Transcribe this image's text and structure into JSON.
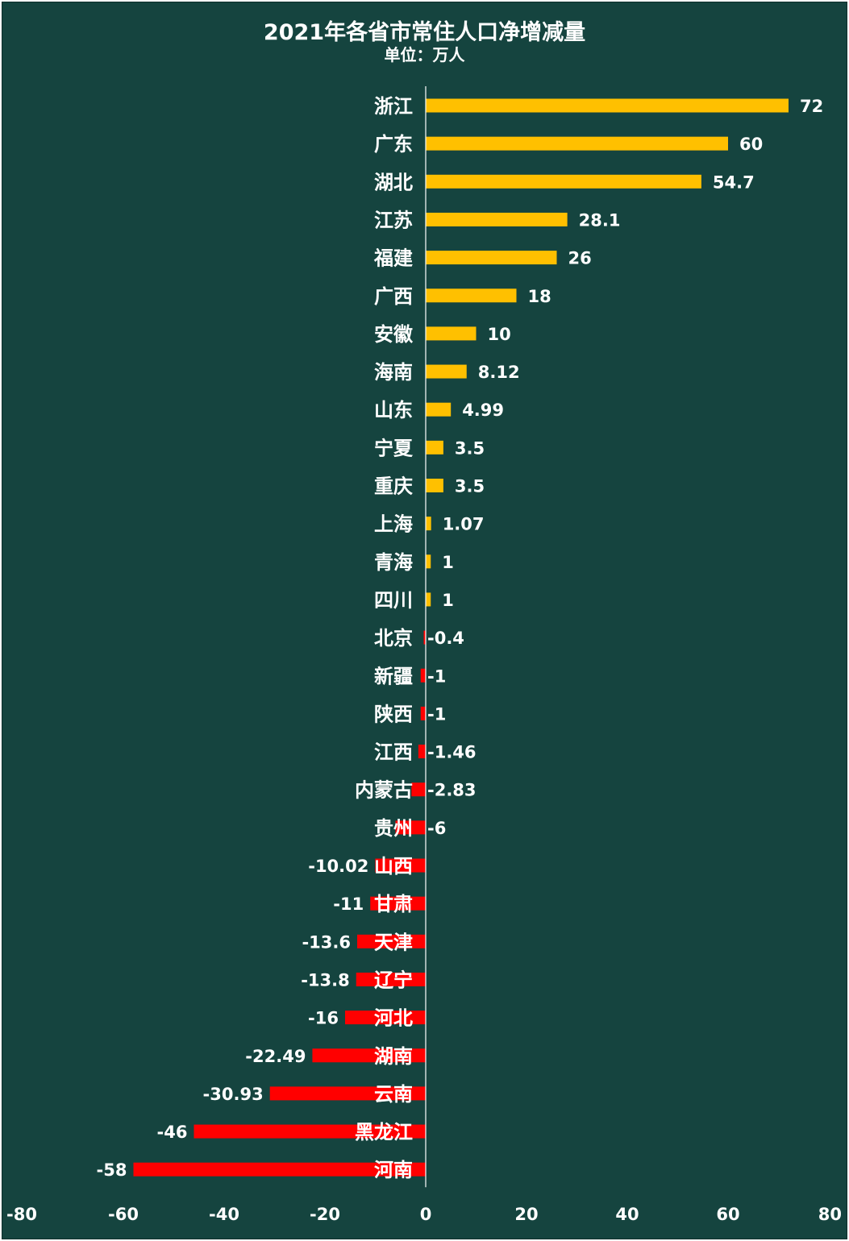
{
  "chart_data": {
    "type": "bar",
    "orientation": "horizontal",
    "title": "2021年各省市常住人口净增减量",
    "subtitle": "单位：万人",
    "categories": [
      "浙江",
      "广东",
      "湖北",
      "江苏",
      "福建",
      "广西",
      "安徽",
      "海南",
      "山东",
      "宁夏",
      "重庆",
      "上海",
      "青海",
      "四川",
      "北京",
      "新疆",
      "陕西",
      "江西",
      "内蒙古",
      "贵州",
      "山西",
      "甘肃",
      "天津",
      "辽宁",
      "河北",
      "湖南",
      "云南",
      "黑龙江",
      "河南"
    ],
    "values": [
      72,
      60,
      54.7,
      28.1,
      26,
      18,
      10,
      8.12,
      4.99,
      3.5,
      3.5,
      1.07,
      1,
      1,
      -0.4,
      -1,
      -1,
      -1.46,
      -2.83,
      -6,
      -10.02,
      -11,
      -13.6,
      -13.8,
      -16,
      -22.49,
      -30.93,
      -46,
      -58
    ],
    "xlim": [
      -80,
      80
    ],
    "xticks": [
      -80,
      -60,
      -40,
      -20,
      0,
      20,
      40,
      60,
      80
    ],
    "grid": false,
    "legend": "none",
    "colors": {
      "background": "#15443f",
      "positive": "#ffc000",
      "negative": "#ff0000",
      "text": "#ffffff"
    }
  }
}
